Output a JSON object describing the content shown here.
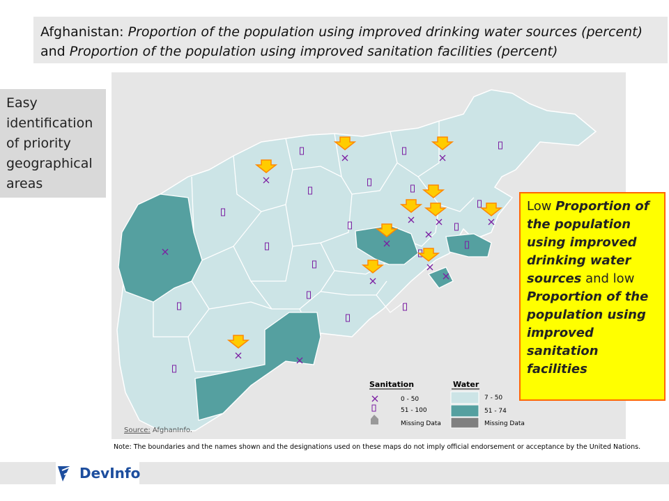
{
  "title": {
    "prefix": "Afghanistan: ",
    "water_indicator": "Proportion of the population using improved drinking water sources (percent)",
    "connector": "and ",
    "sanitation_indicator": "Proportion of the population using improved sanitation facilities (percent)"
  },
  "side_note": [
    "Easy",
    "identification",
    "of priority",
    "geographical",
    "areas"
  ],
  "callout": {
    "p1": "Low ",
    "p2": "Proportion of the population using improved drinking water sources",
    "p3": " and low ",
    "p4": "Proportion of the population using improved sanitation facilities",
    "bg_color": "#ffff00",
    "border_color": "#ff6600"
  },
  "legend": {
    "sanitation_title": "Sanitation",
    "sanitation_items": [
      {
        "symbol": "cross",
        "label": "0 - 50",
        "color": "#7b1fa2"
      },
      {
        "symbol": "box",
        "label": "51 - 100",
        "color": "#7b1fa2"
      },
      {
        "symbol": "missing",
        "label": "Missing Data",
        "color": "#999999"
      }
    ],
    "water_title": "Water",
    "water_items": [
      {
        "label": "7 - 50",
        "color": "#cce4e6"
      },
      {
        "label": "51 - 74",
        "color": "#55a0a0"
      },
      {
        "label": "Missing Data",
        "color": "#808080"
      }
    ]
  },
  "source": {
    "label": "Source:",
    "text": " AfghanInfo."
  },
  "note": "Note: The boundaries and the names shown and the designations used on these maps do not imply official endorsement or acceptance by the United Nations.",
  "logo": {
    "text": "DevInfo",
    "color": "#1d4e9e"
  },
  "colors": {
    "water_low": "#cce4e6",
    "water_high": "#55a0a0",
    "border": "#ffffff",
    "arrow_fill": "#ffcc00",
    "arrow_stroke": "#ff8800"
  }
}
